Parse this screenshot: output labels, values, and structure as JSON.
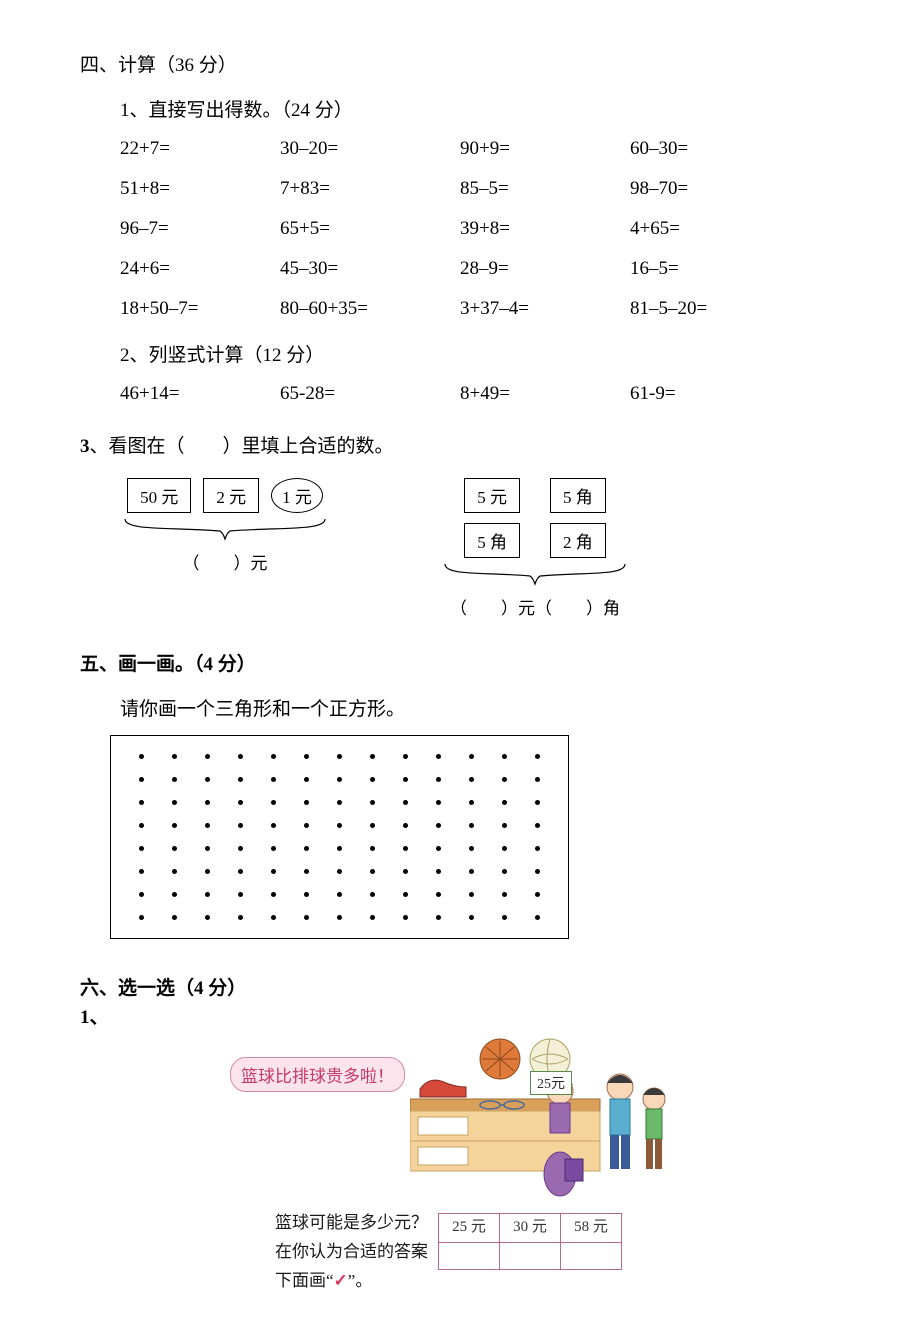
{
  "section4": {
    "title": "四、计算（36 分）",
    "sub1_title": "1、直接写出得数。（24 分）",
    "grid1": {
      "r0c0": "22+7=",
      "r0c1": "30–20=",
      "r0c2": "90+9=",
      "r0c3": "60–30=",
      "r1c0": "51+8=",
      "r1c1": "7+83=",
      "r1c2": "85–5=",
      "r1c3": "98–70=",
      "r2c0": "96–7=",
      "r2c1": "65+5=",
      "r2c2": "39+8=",
      "r2c3": "4+65=",
      "r3c0": "24+6=",
      "r3c1": "45–30=",
      "r3c2": "28–9=",
      "r3c3": "16–5=",
      "r4c0": "18+50–7=",
      "r4c1": "80–60+35=",
      "r4c2": "3+37–4=",
      "r4c3": "81–5–20="
    },
    "sub2_title": "2、列竖式计算（12 分）",
    "grid2": {
      "c0": "46+14=",
      "c1": "65-28=",
      "c2": "8+49=",
      "c3": "61-9="
    }
  },
  "question3": {
    "prefix": "3",
    "title": "、看图在（　　）里填上合适的数。",
    "left": {
      "b1": "50 元",
      "b2": "2 元",
      "b3": "1 元",
      "answer": "（　　）元"
    },
    "right": {
      "b1": "5 元",
      "b2": "5 角",
      "b3": "5 角",
      "b4": "2 角",
      "answer": "（　　）元（　　）角"
    }
  },
  "section5": {
    "title": "五、画一画。（4 分）",
    "instruction": "请你画一个三角形和一个正方形。",
    "dotgrid": {
      "rows": 8,
      "cols": 13
    }
  },
  "section6": {
    "title": "六、选一选（4 分）",
    "sub": "1、",
    "speech": "篮球比排球贵多啦！",
    "price_tag": "25元",
    "question_l1": "篮球可能是多少元？",
    "question_l2": "在你认为合适的答案",
    "question_l3_a": "下面画“",
    "question_l3_b": "”。",
    "check": "✓",
    "options": {
      "a": "25 元",
      "b": "30 元",
      "c": "58 元"
    }
  },
  "colors": {
    "text": "#000000",
    "speech_bg": "#fde4ec",
    "speech_border": "#d48aa8",
    "speech_text": "#c33a6b",
    "table_border": "#b56a8a",
    "check": "#d8365a"
  }
}
